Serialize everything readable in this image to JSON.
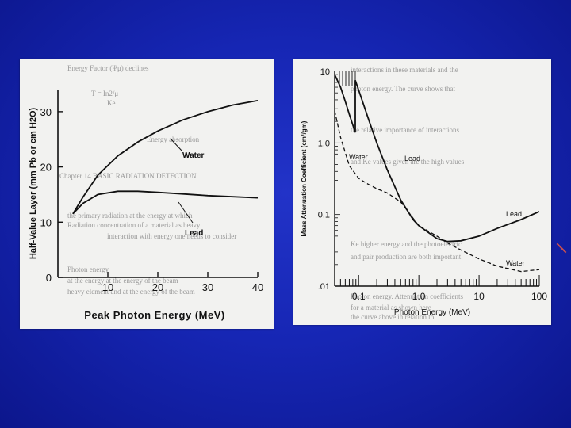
{
  "chart_data": [
    {
      "type": "line",
      "xlabel": "Peak Photon Energy (MeV)",
      "ylabel": "Half-Value Layer (mm Pb or cm H2O)",
      "xlim": [
        0,
        40
      ],
      "ylim": [
        0,
        34
      ],
      "x_ticks": [
        10,
        20,
        30,
        40
      ],
      "y_ticks": [
        0,
        10,
        20,
        30
      ],
      "grid": false,
      "series": [
        {
          "name": "Water",
          "x": [
            3,
            5,
            8,
            12,
            16,
            20,
            25,
            30,
            35,
            40
          ],
          "values": [
            11.5,
            14.5,
            18.5,
            22,
            24.5,
            26.5,
            28.5,
            30,
            31.2,
            32
          ]
        },
        {
          "name": "Lead",
          "x": [
            3,
            5,
            8,
            12,
            16,
            20,
            25,
            30,
            35,
            40
          ],
          "values": [
            11.5,
            13.4,
            15,
            15.6,
            15.6,
            15.4,
            15.1,
            14.8,
            14.6,
            14.4
          ]
        }
      ]
    },
    {
      "type": "line",
      "xlabel": "Photon Energy (MeV)",
      "ylabel": "Mass Attenuation Coefficient (cm²/gm)",
      "x_scale": "log",
      "y_scale": "log",
      "xlim": [
        0.04,
        100
      ],
      "ylim": [
        0.01,
        10
      ],
      "x_tick_labels": [
        "0.1",
        "1.0",
        "10",
        "100"
      ],
      "y_tick_labels": [
        "10",
        "1.0",
        "0.1",
        ".01"
      ],
      "grid": false,
      "series": [
        {
          "name": "Lead",
          "style": "solid",
          "x": [
            0.04,
            0.05,
            0.06,
            0.07,
            0.088,
            0.088,
            0.1,
            0.15,
            0.2,
            0.3,
            0.5,
            0.8,
            1.0,
            2,
            3,
            5,
            10,
            20,
            50,
            100
          ],
          "values": [
            9,
            6,
            3.8,
            2.5,
            1.4,
            7.5,
            5.5,
            2.0,
            1.0,
            0.42,
            0.16,
            0.085,
            0.07,
            0.046,
            0.042,
            0.043,
            0.05,
            0.064,
            0.085,
            0.11
          ]
        },
        {
          "name": "Water",
          "style": "dashed",
          "x": [
            0.04,
            0.05,
            0.07,
            0.1,
            0.15,
            0.2,
            0.3,
            0.5,
            1.0,
            2,
            3,
            5,
            10,
            20,
            50,
            100
          ],
          "values": [
            2.8,
            1.2,
            0.48,
            0.32,
            0.26,
            0.23,
            0.2,
            0.15,
            0.07,
            0.05,
            0.04,
            0.032,
            0.024,
            0.019,
            0.016,
            0.017
          ]
        }
      ]
    }
  ]
}
